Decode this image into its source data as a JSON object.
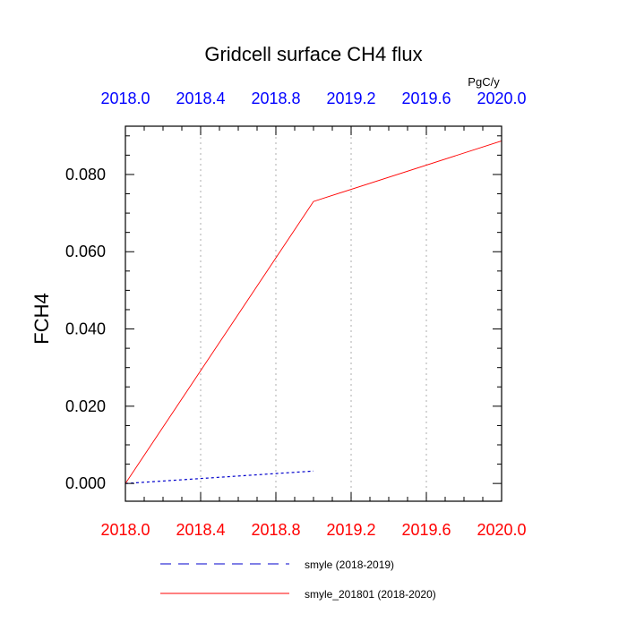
{
  "chart_data": {
    "type": "line",
    "title": "Gridcell surface CH4 flux",
    "units": "PgC/y",
    "ylabel": "FCH4",
    "xlabel": "",
    "xlim": [
      2018.0,
      2020.0
    ],
    "ylim": [
      -0.0046,
      0.0925
    ],
    "x_ticks": [
      "2018.0",
      "2018.4",
      "2018.8",
      "2019.2",
      "2019.6",
      "2020.0"
    ],
    "x_tick_values": [
      2018.0,
      2018.4,
      2018.8,
      2019.2,
      2019.6,
      2020.0
    ],
    "y_ticks": [
      "0.000",
      "0.020",
      "0.040",
      "0.060",
      "0.080"
    ],
    "y_tick_values": [
      0.0,
      0.02,
      0.04,
      0.06,
      0.08
    ],
    "grid": "x-dotted",
    "legend_position": "bottom",
    "series": [
      {
        "name": "smyle (2018-2019)",
        "style": "dashed",
        "color": "#0000cc",
        "x": [
          2018.0,
          2019.0
        ],
        "values": [
          0.0,
          0.0032
        ]
      },
      {
        "name": "smyle_201801 (2018-2020)",
        "style": "solid",
        "color": "#ff0000",
        "x": [
          2018.0,
          2019.0,
          2020.0
        ],
        "values": [
          0.0,
          0.073,
          0.0887
        ]
      }
    ]
  },
  "colors": {
    "top_axis_labels": "#0000ff",
    "bottom_axis_labels": "#ff0000",
    "axis": "#000000",
    "grid": "#bbbbbb"
  }
}
